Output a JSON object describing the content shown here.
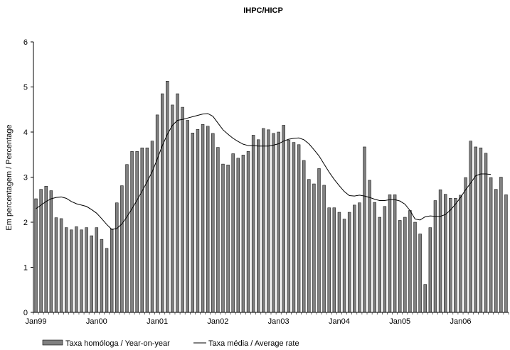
{
  "chart_data": {
    "type": "bar",
    "title": "IHPC/HICP",
    "ylabel": "Em percentagem / Percentage",
    "xlabel": "",
    "ylim": [
      0,
      6
    ],
    "yticks": [
      "0",
      "1",
      "2",
      "3",
      "4",
      "5",
      "6"
    ],
    "xticks": [
      {
        "label": "Jan99",
        "month_index": 0
      },
      {
        "label": "Jan00",
        "month_index": 12
      },
      {
        "label": "Jan01",
        "month_index": 24
      },
      {
        "label": "Jan02",
        "month_index": 36
      },
      {
        "label": "Jan03",
        "month_index": 48
      },
      {
        "label": "Jan04",
        "month_index": 60
      },
      {
        "label": "Jan05",
        "month_index": 72
      },
      {
        "label": "Jan06",
        "month_index": 84
      }
    ],
    "grid": false,
    "legend_placement": "bottom-left",
    "series": [
      {
        "name": "Taxa homóloga / Year-on-year",
        "kind": "bar",
        "color": "#808080",
        "values": [
          2.52,
          2.73,
          2.8,
          2.7,
          2.1,
          2.08,
          1.88,
          1.83,
          1.9,
          1.83,
          1.88,
          1.7,
          1.88,
          1.62,
          1.42,
          1.85,
          2.43,
          2.81,
          3.28,
          3.57,
          3.57,
          3.65,
          3.65,
          3.8,
          4.38,
          4.85,
          5.13,
          4.6,
          4.85,
          4.55,
          4.26,
          3.98,
          4.06,
          4.17,
          4.13,
          3.97,
          3.66,
          3.29,
          3.27,
          3.52,
          3.42,
          3.49,
          3.57,
          3.93,
          3.83,
          4.08,
          4.05,
          3.97,
          4.0,
          4.15,
          3.82,
          3.77,
          3.72,
          3.37,
          2.95,
          2.85,
          3.19,
          2.82,
          2.32,
          2.32,
          2.22,
          2.07,
          2.22,
          2.38,
          2.43,
          3.67,
          2.93,
          2.44,
          2.11,
          2.35,
          2.61,
          2.61,
          2.04,
          2.11,
          2.26,
          2.0,
          1.74,
          0.62,
          1.88,
          2.48,
          2.72,
          2.62,
          2.53,
          2.53,
          2.6,
          2.99,
          3.8,
          3.67,
          3.65,
          3.53,
          2.99,
          2.73,
          3.0,
          2.61
        ]
      },
      {
        "name": "Taxa média / Average rate",
        "kind": "line",
        "color": "#000000",
        "values": [
          2.3,
          2.38,
          2.46,
          2.52,
          2.55,
          2.56,
          2.53,
          2.46,
          2.41,
          2.38,
          2.35,
          2.28,
          2.2,
          2.08,
          1.95,
          1.84,
          1.86,
          1.96,
          2.12,
          2.3,
          2.49,
          2.69,
          2.9,
          3.12,
          3.4,
          3.7,
          3.95,
          4.15,
          4.26,
          4.28,
          4.31,
          4.34,
          4.37,
          4.4,
          4.41,
          4.35,
          4.2,
          4.05,
          3.95,
          3.86,
          3.79,
          3.73,
          3.7,
          3.7,
          3.69,
          3.69,
          3.69,
          3.71,
          3.74,
          3.8,
          3.84,
          3.86,
          3.87,
          3.83,
          3.74,
          3.61,
          3.47,
          3.29,
          3.11,
          2.95,
          2.81,
          2.68,
          2.59,
          2.58,
          2.6,
          2.58,
          2.55,
          2.51,
          2.48,
          2.48,
          2.5,
          2.5,
          2.47,
          2.4,
          2.26,
          2.07,
          2.05,
          2.12,
          2.14,
          2.13,
          2.13,
          2.17,
          2.27,
          2.4,
          2.55,
          2.72,
          2.87,
          3.03,
          3.07,
          3.07,
          3.06
        ]
      }
    ]
  }
}
